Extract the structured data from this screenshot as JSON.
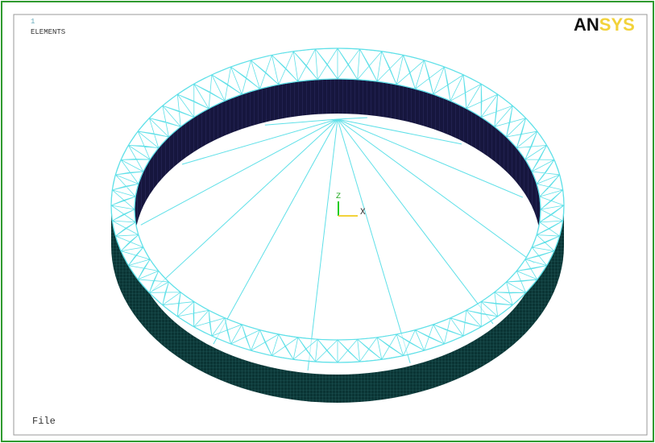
{
  "window": {
    "number": "1",
    "mode": "ELEMENTS",
    "logo": {
      "dark": "AN",
      "light": "SYS"
    },
    "axes": {
      "z": "Z",
      "x": "X"
    },
    "menu": "File"
  }
}
